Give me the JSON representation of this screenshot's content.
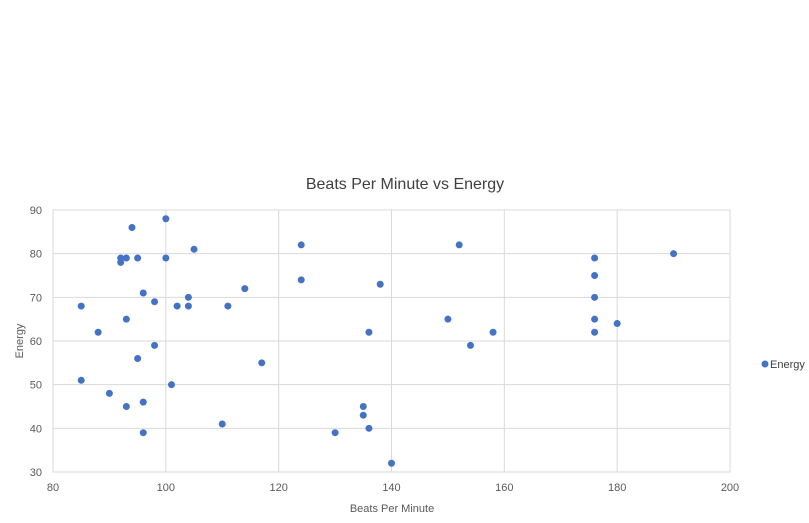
{
  "chart_data": {
    "type": "scatter",
    "title": "Beats Per Minute vs Energy",
    "xlabel": "Beats Per Minute",
    "ylabel": "Energy",
    "xlim": [
      80,
      200
    ],
    "ylim": [
      30,
      90
    ],
    "x_ticks": [
      80,
      100,
      120,
      140,
      160,
      180,
      200
    ],
    "y_ticks": [
      30,
      40,
      50,
      60,
      70,
      80,
      90
    ],
    "x_tick_labels": [
      "80",
      "100",
      "120",
      "140",
      "160",
      "180",
      "200"
    ],
    "y_tick_labels": [
      "30",
      "40",
      "50",
      "60",
      "70",
      "80",
      "90"
    ],
    "grid": true,
    "legend_position": "right",
    "series": [
      {
        "name": "Energy",
        "color": "#4472c4",
        "points": [
          [
            85,
            68
          ],
          [
            85,
            51
          ],
          [
            88,
            62
          ],
          [
            90,
            48
          ],
          [
            92,
            79
          ],
          [
            92,
            78
          ],
          [
            93,
            79
          ],
          [
            93,
            65
          ],
          [
            93,
            45
          ],
          [
            94,
            86
          ],
          [
            95,
            79
          ],
          [
            95,
            56
          ],
          [
            96,
            71
          ],
          [
            96,
            46
          ],
          [
            96,
            39
          ],
          [
            98,
            69
          ],
          [
            98,
            59
          ],
          [
            100,
            88
          ],
          [
            100,
            79
          ],
          [
            101,
            50
          ],
          [
            102,
            68
          ],
          [
            104,
            70
          ],
          [
            104,
            68
          ],
          [
            105,
            81
          ],
          [
            110,
            41
          ],
          [
            111,
            68
          ],
          [
            114,
            72
          ],
          [
            117,
            55
          ],
          [
            124,
            82
          ],
          [
            124,
            74
          ],
          [
            130,
            39
          ],
          [
            135,
            45
          ],
          [
            135,
            43
          ],
          [
            136,
            62
          ],
          [
            136,
            40
          ],
          [
            138,
            73
          ],
          [
            140,
            32
          ],
          [
            150,
            65
          ],
          [
            152,
            82
          ],
          [
            154,
            59
          ],
          [
            158,
            62
          ],
          [
            176,
            79
          ],
          [
            176,
            75
          ],
          [
            176,
            70
          ],
          [
            176,
            65
          ],
          [
            176,
            62
          ],
          [
            180,
            64
          ],
          [
            190,
            80
          ]
        ]
      }
    ]
  }
}
